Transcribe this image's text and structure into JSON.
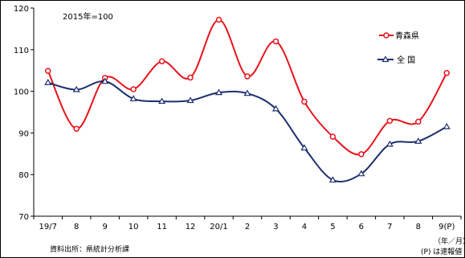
{
  "chart_data": {
    "type": "line",
    "annotation": "2015年=100",
    "categories": [
      "19/7",
      "8",
      "9",
      "10",
      "11",
      "12",
      "20/1",
      "2",
      "3",
      "4",
      "5",
      "6",
      "7",
      "8",
      "9(P)"
    ],
    "ylim": [
      70,
      120
    ],
    "yticks": [
      70,
      80,
      90,
      100,
      110,
      120
    ],
    "series": [
      {
        "name": "青森県",
        "color": "#e8141c",
        "marker": "circle",
        "values": [
          104.9,
          91.0,
          103.2,
          100.5,
          107.2,
          103.3,
          117.2,
          103.6,
          112.0,
          97.5,
          89.1,
          84.9,
          92.9,
          92.7,
          104.4
        ]
      },
      {
        "name": "全 国",
        "color": "#1c2e6e",
        "marker": "triangle",
        "values": [
          102.1,
          100.4,
          102.4,
          98.2,
          97.6,
          97.8,
          99.7,
          99.5,
          95.8,
          86.4,
          78.7,
          80.2,
          87.3,
          88.0,
          91.5
        ]
      }
    ],
    "x_unit_note": "（年／月）",
    "p_note": "(P) は速報値",
    "source": "資料出所：県統計分析課"
  }
}
